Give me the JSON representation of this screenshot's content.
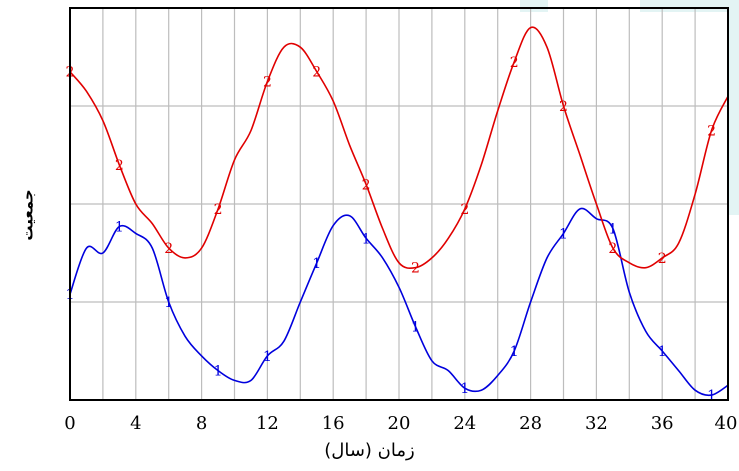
{
  "chart_data": {
    "type": "line",
    "xlabel": "زمان (سال)",
    "ylabel": "جمعیت",
    "xlim": [
      0,
      40
    ],
    "ylim": [
      0,
      4
    ],
    "x_ticks": [
      "0",
      "4",
      "8",
      "12",
      "16",
      "20",
      "24",
      "28",
      "32",
      "36",
      "40"
    ],
    "grid": true,
    "colors": {
      "series1": "#0000dd",
      "series2": "#e00000",
      "axis": "#000000",
      "grid": "#bdbdbd"
    },
    "series": [
      {
        "marker_label": "1",
        "x": [
          0,
          1,
          2,
          3,
          4,
          5,
          6,
          7,
          8,
          9,
          10,
          11,
          12,
          13,
          14,
          15,
          16,
          17,
          18,
          19,
          20,
          21,
          22,
          23,
          24,
          25,
          26,
          27,
          28,
          29,
          30,
          31,
          32,
          33,
          34,
          35,
          36,
          37,
          38,
          39,
          40
        ],
        "values": [
          1.08,
          1.55,
          1.5,
          1.77,
          1.7,
          1.55,
          1.0,
          0.65,
          0.45,
          0.3,
          0.2,
          0.2,
          0.45,
          0.6,
          1.0,
          1.4,
          1.78,
          1.88,
          1.65,
          1.45,
          1.15,
          0.75,
          0.4,
          0.3,
          0.12,
          0.1,
          0.25,
          0.5,
          1.0,
          1.45,
          1.7,
          1.95,
          1.85,
          1.75,
          1.1,
          0.7,
          0.5,
          0.3,
          0.1,
          0.05,
          0.15
        ]
      },
      {
        "marker_label": "2",
        "x": [
          0,
          1,
          2,
          3,
          4,
          5,
          6,
          7,
          8,
          9,
          10,
          11,
          12,
          13,
          14,
          15,
          16,
          17,
          18,
          19,
          20,
          21,
          22,
          23,
          24,
          25,
          26,
          27,
          28,
          29,
          30,
          31,
          32,
          33,
          34,
          35,
          36,
          37,
          38,
          39,
          40
        ],
        "values": [
          3.35,
          3.15,
          2.85,
          2.4,
          2.0,
          1.8,
          1.55,
          1.45,
          1.55,
          1.95,
          2.45,
          2.75,
          3.25,
          3.6,
          3.6,
          3.35,
          3.05,
          2.6,
          2.2,
          1.75,
          1.4,
          1.35,
          1.45,
          1.65,
          1.95,
          2.4,
          2.95,
          3.45,
          3.8,
          3.6,
          3.0,
          2.5,
          2.0,
          1.55,
          1.4,
          1.35,
          1.45,
          1.6,
          2.1,
          2.75,
          3.1
        ]
      }
    ]
  }
}
